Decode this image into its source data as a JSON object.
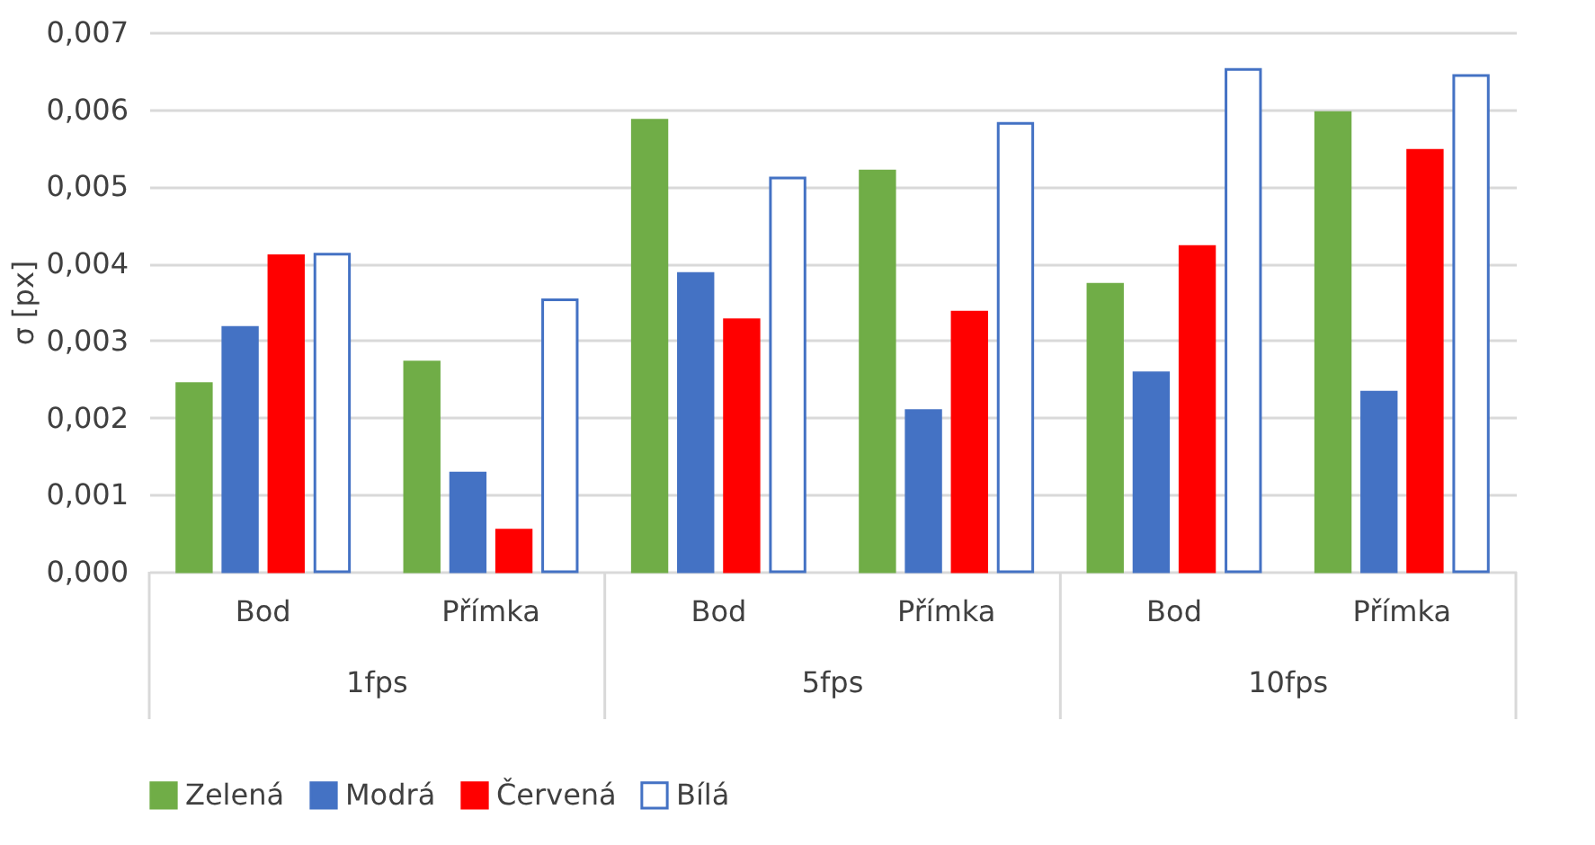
{
  "chart_data": {
    "type": "bar",
    "ylabel": "σ [px]",
    "categories": [
      "Bod",
      "Přímka",
      "Bod",
      "Přímka",
      "Bod",
      "Přímka"
    ],
    "annotations": [
      "1fps",
      "5fps",
      "10fps"
    ],
    "series": [
      {
        "name": "Zelená",
        "color": "#70ad47",
        "values": [
          0.00244,
          0.00272,
          0.00586,
          0.0052,
          0.00373,
          0.00596
        ]
      },
      {
        "name": "Modrá",
        "color": "#4472c4",
        "values": [
          0.00317,
          0.00128,
          0.00387,
          0.00209,
          0.00258,
          0.00233
        ]
      },
      {
        "name": "Červená",
        "color": "#ff0000",
        "values": [
          0.0041,
          0.00054,
          0.00327,
          0.00337,
          0.00422,
          0.00547
        ]
      },
      {
        "name": "Bílá",
        "color": "#ffffff",
        "values": [
          0.00412,
          0.00353,
          0.00511,
          0.00582,
          0.00652,
          0.00644
        ]
      }
    ],
    "ylim": [
      0,
      0.007
    ],
    "yticks": [
      {
        "value": 0,
        "label": "0,000"
      },
      {
        "value": 0.001,
        "label": "0,001"
      },
      {
        "value": 0.002,
        "label": "0,002"
      },
      {
        "value": 0.003,
        "label": "0,003"
      },
      {
        "value": 0.004,
        "label": "0,004"
      },
      {
        "value": 0.005,
        "label": "0,005"
      },
      {
        "value": 0.006,
        "label": "0,006"
      },
      {
        "value": 0.007,
        "label": "0,007"
      }
    ],
    "grid": "y",
    "legend": "bottom"
  }
}
